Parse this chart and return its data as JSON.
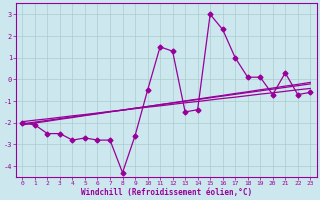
{
  "xlabel": "Windchill (Refroidissement éolien,°C)",
  "background_color": "#cce8ee",
  "plot_bg_color": "#cce8ee",
  "grid_color": "#aacccc",
  "line_color": "#990099",
  "x_data": [
    0,
    1,
    2,
    3,
    4,
    5,
    6,
    7,
    8,
    9,
    10,
    11,
    12,
    13,
    14,
    15,
    16,
    17,
    18,
    19,
    20,
    21,
    22,
    23
  ],
  "y_main": [
    -2.0,
    -2.1,
    -2.5,
    -2.5,
    -2.8,
    -2.7,
    -2.8,
    -2.8,
    -4.3,
    -2.6,
    -0.5,
    1.5,
    1.3,
    -1.5,
    -1.4,
    3.0,
    2.3,
    1.0,
    0.1,
    0.1,
    -0.7,
    0.3,
    -0.7,
    -0.6
  ],
  "y_trend1": [
    -1.95,
    -1.88,
    -1.82,
    -1.75,
    -1.68,
    -1.62,
    -1.55,
    -1.48,
    -1.42,
    -1.35,
    -1.28,
    -1.22,
    -1.15,
    -1.08,
    -1.02,
    -0.95,
    -0.88,
    -0.82,
    -0.75,
    -0.68,
    -0.62,
    -0.55,
    -0.48,
    -0.42
  ],
  "y_trend2": [
    -2.05,
    -1.97,
    -1.89,
    -1.81,
    -1.73,
    -1.65,
    -1.57,
    -1.49,
    -1.41,
    -1.33,
    -1.25,
    -1.17,
    -1.09,
    -1.01,
    -0.93,
    -0.85,
    -0.77,
    -0.69,
    -0.61,
    -0.53,
    -0.45,
    -0.37,
    -0.29,
    -0.21
  ],
  "y_trend3": [
    -2.1,
    -2.01,
    -1.93,
    -1.84,
    -1.76,
    -1.67,
    -1.59,
    -1.5,
    -1.42,
    -1.33,
    -1.25,
    -1.16,
    -1.08,
    -0.99,
    -0.91,
    -0.82,
    -0.74,
    -0.65,
    -0.57,
    -0.48,
    -0.4,
    -0.31,
    -0.23,
    -0.14
  ],
  "ylim": [
    -4.5,
    3.5
  ],
  "xlim": [
    -0.5,
    23.5
  ],
  "yticks": [
    -4,
    -3,
    -2,
    -1,
    0,
    1,
    2,
    3
  ],
  "xticks": [
    0,
    1,
    2,
    3,
    4,
    5,
    6,
    7,
    8,
    9,
    10,
    11,
    12,
    13,
    14,
    15,
    16,
    17,
    18,
    19,
    20,
    21,
    22,
    23
  ]
}
